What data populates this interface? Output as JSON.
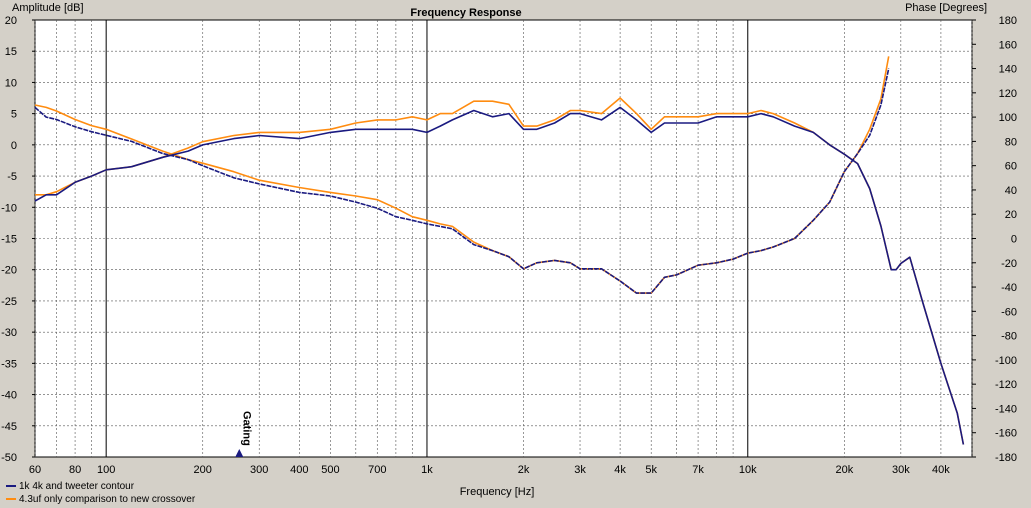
{
  "chart_data": {
    "type": "line",
    "title": "Frequency Response",
    "xlabel": "Frequency [Hz]",
    "ylabel_left": "Amplitude [dB]",
    "ylabel_right": "Phase [Degrees]",
    "xscale": "log",
    "xlim": [
      60,
      50000
    ],
    "ylim_left": [
      -50,
      20
    ],
    "ylim_right": [
      -180,
      180
    ],
    "grid": true,
    "x_ticks": [
      "60",
      "80",
      "100",
      "200",
      "300",
      "400",
      "500",
      "700",
      "1k",
      "2k",
      "3k",
      "4k",
      "5k",
      "7k",
      "10k",
      "20k",
      "30k",
      "40k"
    ],
    "y_ticks_left": [
      "20",
      "15",
      "10",
      "5",
      "0",
      "-5",
      "-10",
      "-15",
      "-20",
      "-25",
      "-30",
      "-35",
      "-40",
      "-45",
      "-50"
    ],
    "y_ticks_right": [
      "180",
      "160",
      "140",
      "120",
      "100",
      "80",
      "60",
      "40",
      "20",
      "0",
      "-20",
      "-40",
      "-60",
      "-80",
      "-100",
      "-120",
      "-140",
      "-160",
      "-180"
    ],
    "annotation": "Gating",
    "annotation_x": 260,
    "legend_position": "bottom-left",
    "series": [
      {
        "name": "1k 4k and tweeter contour",
        "color": "#1a1a80",
        "amplitude": {
          "x": [
            60,
            65,
            70,
            80,
            90,
            100,
            120,
            150,
            180,
            200,
            250,
            300,
            400,
            500,
            600,
            700,
            800,
            900,
            1000,
            1100,
            1200,
            1400,
            1600,
            1800,
            2000,
            2200,
            2500,
            2800,
            3000,
            3500,
            4000,
            4500,
            5000,
            5500,
            6000,
            7000,
            8000,
            9000,
            10000,
            11000,
            12000,
            14000,
            16000,
            18000,
            20000,
            22000,
            24000,
            26000,
            28000,
            29000,
            30000,
            32000,
            35000,
            40000,
            45000,
            47000
          ],
          "y": [
            -9,
            -8,
            -8,
            -6,
            -5,
            -4,
            -3.5,
            -2,
            -1,
            0,
            1,
            1.5,
            1,
            2,
            2.5,
            2.5,
            2.5,
            2.5,
            2,
            3,
            4,
            5.5,
            4.5,
            5,
            2.5,
            2.5,
            3.5,
            5,
            5,
            4,
            6,
            4,
            2,
            3.5,
            3.5,
            3.5,
            4.5,
            4.5,
            4.5,
            5,
            4.5,
            3,
            2,
            0,
            -1.5,
            -3,
            -7,
            -13,
            -20,
            -20,
            -19,
            -18,
            -25,
            -35,
            -43,
            -48
          ]
        },
        "phase": {
          "x": [
            60,
            65,
            70,
            80,
            90,
            100,
            120,
            150,
            180,
            200,
            250,
            300,
            400,
            500,
            600,
            700,
            800,
            900,
            1000,
            1100,
            1200,
            1400,
            1600,
            1800,
            2000,
            2200,
            2500,
            2800,
            3000,
            3500,
            4000,
            4500,
            5000,
            5500,
            6000,
            7000,
            8000,
            9000,
            10000,
            11000,
            12000,
            14000,
            16000,
            18000,
            20000,
            22000,
            24000,
            26000,
            27500
          ],
          "y": [
            108,
            100,
            98,
            92,
            88,
            85,
            80,
            70,
            65,
            60,
            50,
            45,
            38,
            35,
            30,
            25,
            18,
            15,
            12,
            10,
            8,
            -5,
            -10,
            -15,
            -25,
            -20,
            -18,
            -20,
            -25,
            -25,
            -35,
            -45,
            -45,
            -32,
            -30,
            -22,
            -20,
            -17,
            -12,
            -10,
            -7,
            0,
            15,
            30,
            55,
            70,
            85,
            110,
            140
          ]
        }
      },
      {
        "name": "4.3uf only comparison to new crossover",
        "color": "#ff8c10",
        "amplitude": {
          "x": [
            60,
            65,
            70,
            80,
            90,
            100,
            120,
            150,
            180,
            200,
            250,
            300,
            400,
            500,
            600,
            700,
            800,
            900,
            1000,
            1100,
            1200,
            1400,
            1600,
            1800,
            2000,
            2200,
            2500,
            2800,
            3000,
            3500,
            4000,
            4500,
            5000,
            5500,
            6000,
            7000,
            8000,
            9000,
            10000,
            11000,
            12000,
            14000,
            16000,
            18000,
            20000,
            22000,
            24000,
            26000,
            28000,
            29000,
            30000,
            32000,
            35000,
            40000,
            45000,
            47000
          ],
          "y": [
            -8,
            -8,
            -7.5,
            -6,
            -5,
            -4,
            -3.5,
            -2,
            -0.5,
            0.5,
            1.5,
            2,
            2,
            2.5,
            3.5,
            4,
            4,
            4.5,
            4,
            5,
            5,
            7,
            7,
            6.5,
            3,
            3,
            4,
            5.5,
            5.5,
            5,
            7.5,
            5,
            2.5,
            4.5,
            4.5,
            4.5,
            5,
            5,
            5,
            5.5,
            5,
            3.5,
            2,
            0,
            -1.5,
            -3,
            -7,
            -13,
            -20,
            -20,
            -19,
            -18,
            -25,
            -35,
            -43,
            -48
          ]
        },
        "phase": {
          "x": [
            60,
            65,
            70,
            80,
            90,
            100,
            120,
            150,
            180,
            200,
            250,
            300,
            400,
            500,
            600,
            700,
            800,
            900,
            1000,
            1100,
            1200,
            1400,
            1600,
            1800,
            2000,
            2200,
            2500,
            2800,
            3000,
            3500,
            4000,
            4500,
            5000,
            5500,
            6000,
            7000,
            8000,
            9000,
            10000,
            11000,
            12000,
            14000,
            16000,
            18000,
            20000,
            22000,
            24000,
            26000,
            27500
          ],
          "y": [
            110,
            108,
            105,
            98,
            93,
            90,
            82,
            72,
            65,
            62,
            55,
            48,
            42,
            38,
            35,
            32,
            25,
            18,
            15,
            12,
            10,
            -3,
            -10,
            -15,
            -25,
            -20,
            -18,
            -20,
            -25,
            -25,
            -35,
            -45,
            -45,
            -32,
            -30,
            -22,
            -20,
            -17,
            -12,
            -10,
            -7,
            0,
            15,
            30,
            55,
            70,
            90,
            115,
            150
          ]
        }
      }
    ]
  }
}
